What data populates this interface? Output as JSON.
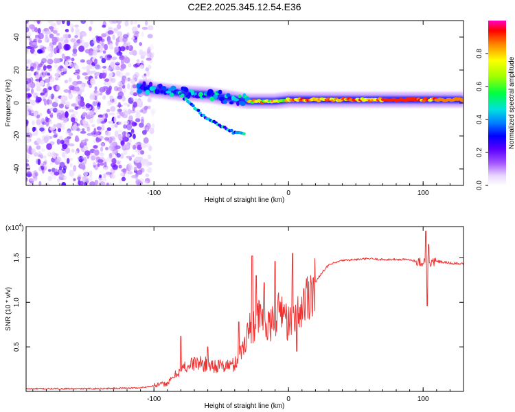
{
  "figure": {
    "title": "C2E2.2025.345.12.54.E36"
  },
  "chart_data": [
    {
      "type": "heatmap",
      "name": "spectrogram",
      "xlabel": "Height of straight line (km)",
      "ylabel": "Frequency (Hz)",
      "xlim": [
        -195,
        130
      ],
      "ylim": [
        -50,
        50
      ],
      "x_ticks": [
        -100,
        0,
        100
      ],
      "x_tick_labels": [
        "-100",
        "0",
        "100"
      ],
      "y_ticks": [
        -40,
        -20,
        0,
        20,
        40
      ],
      "y_tick_labels": [
        "-40",
        "-20",
        "0",
        "20",
        "40"
      ],
      "colorbar": {
        "label": "Normalized spectral amplitude",
        "range": [
          0,
          1
        ],
        "ticks": [
          0.0,
          0.2,
          0.4,
          0.6,
          0.8
        ],
        "tick_labels": [
          "0.0",
          "0.2",
          "0.4",
          "0.6",
          "0.8"
        ],
        "stops": [
          {
            "v": 0.0,
            "color": "#ffffff"
          },
          {
            "v": 0.06,
            "color": "#e8d4ff"
          },
          {
            "v": 0.14,
            "color": "#a050ff"
          },
          {
            "v": 0.22,
            "color": "#5a00ff"
          },
          {
            "v": 0.3,
            "color": "#0000ff"
          },
          {
            "v": 0.38,
            "color": "#0080ff"
          },
          {
            "v": 0.46,
            "color": "#00e0e0"
          },
          {
            "v": 0.56,
            "color": "#00ff40"
          },
          {
            "v": 0.66,
            "color": "#a0ff00"
          },
          {
            "v": 0.76,
            "color": "#ffff00"
          },
          {
            "v": 0.86,
            "color": "#ff8000"
          },
          {
            "v": 0.94,
            "color": "#ff0000"
          },
          {
            "v": 1.0,
            "color": "#ff00c0"
          }
        ]
      },
      "features": [
        {
          "name": "noise-region",
          "x_range": [
            -195,
            -100
          ],
          "f_range": [
            -50,
            50
          ],
          "amplitude": [
            0.05,
            0.25
          ]
        },
        {
          "name": "main-band",
          "points": [
            [
              -112,
              10
            ],
            [
              -100,
              8
            ],
            [
              -80,
              6
            ],
            [
              -60,
              5
            ],
            [
              -45,
              3
            ],
            [
              -30,
              1
            ],
            [
              -10,
              1
            ],
            [
              0,
              2
            ],
            [
              30,
              2
            ],
            [
              60,
              2
            ],
            [
              100,
              2
            ],
            [
              130,
              2
            ]
          ],
          "amplitude": 0.9
        },
        {
          "name": "lower-branch",
          "points": [
            [
              -80,
              5
            ],
            [
              -70,
              -3
            ],
            [
              -60,
              -10
            ],
            [
              -50,
              -14
            ],
            [
              -40,
              -18
            ],
            [
              -33,
              -19
            ]
          ],
          "amplitude": 0.4
        }
      ]
    },
    {
      "type": "line",
      "name": "snr",
      "xlabel": "Height of straight line (km)",
      "ylabel": "SNR (10 * v/v)",
      "y_multiplier": "(x10",
      "y_multiplier_exp": "4",
      "y_multiplier_close": ")",
      "xlim": [
        -195,
        130
      ],
      "ylim": [
        0,
        1.85
      ],
      "x_ticks": [
        -100,
        0,
        100
      ],
      "x_tick_labels": [
        "-100",
        "0",
        "100"
      ],
      "y_ticks": [
        0.5,
        1.0,
        1.5
      ],
      "y_tick_labels": [
        "0.5",
        "1.0",
        "1.5"
      ],
      "color": "#ee3333",
      "series": [
        {
          "name": "SNR",
          "x": [
            -195,
            -150,
            -110,
            -90,
            -80,
            -70,
            -60,
            -50,
            -40,
            -35,
            -30,
            -25,
            -20,
            -15,
            -10,
            -5,
            0,
            5,
            10,
            15,
            20,
            25,
            30,
            40,
            50,
            60,
            70,
            80,
            90,
            95,
            100,
            103,
            105,
            110,
            120,
            130
          ],
          "y": [
            0.03,
            0.03,
            0.04,
            0.09,
            0.25,
            0.32,
            0.3,
            0.28,
            0.3,
            0.45,
            0.68,
            0.78,
            0.85,
            0.7,
            0.8,
            0.95,
            0.75,
            0.8,
            0.95,
            1.1,
            1.22,
            1.34,
            1.42,
            1.47,
            1.48,
            1.49,
            1.48,
            1.48,
            1.48,
            1.46,
            1.45,
            1.5,
            1.44,
            1.46,
            1.44,
            1.43
          ]
        },
        {
          "name": "spikes",
          "x": [
            -80,
            -60,
            -37,
            -27,
            -24,
            -18,
            -10,
            3,
            6,
            102,
            103,
            104
          ],
          "y": [
            0.62,
            0.5,
            0.78,
            1.52,
            1.3,
            1.22,
            1.46,
            1.55,
            0.45,
            1.8,
            0.96,
            1.65
          ]
        }
      ]
    }
  ]
}
